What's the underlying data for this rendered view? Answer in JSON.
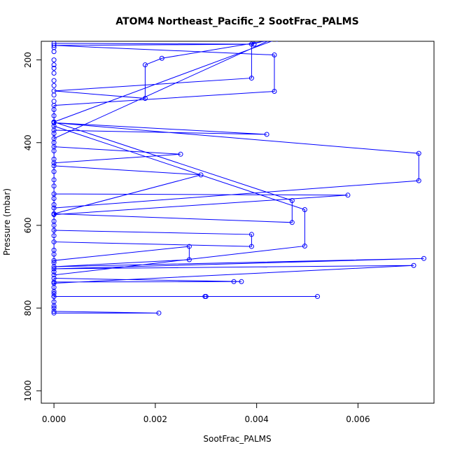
{
  "chart_data": {
    "type": "line",
    "title": "ATOM4 Northeast_Pacific_2 SootFrac_PALMS",
    "xlabel": "SootFrac_PALMS",
    "ylabel": "Pressure (mbar)",
    "xlim": [
      -0.00025,
      0.0075
    ],
    "ylim": [
      1030,
      155
    ],
    "y_reversed": true,
    "x_ticks": [
      0.0,
      0.002,
      0.004,
      0.006
    ],
    "x_tick_labels": [
      "0.000",
      "0.002",
      "0.004",
      "0.006"
    ],
    "y_ticks": [
      200,
      400,
      600,
      800,
      1000
    ],
    "y_tick_labels": [
      "200",
      "400",
      "600",
      "800",
      "1000"
    ],
    "grid": false,
    "series": [
      {
        "color": "#0000ff",
        "marker": "open-circle",
        "points": [
          [
            0.0,
            160
          ],
          [
            0.00395,
            162
          ],
          [
            0.0,
            165
          ],
          [
            0.00435,
            188
          ],
          [
            0.00435,
            276
          ],
          [
            0.0,
            310
          ],
          [
            0.0,
            350
          ],
          [
            0.0044,
            150
          ],
          [
            0.00213,
            196
          ],
          [
            0.0018,
            212
          ],
          [
            0.0018,
            293
          ],
          [
            0.0,
            275
          ],
          [
            0.0039,
            244
          ],
          [
            0.0039,
            162
          ],
          [
            0.0043,
            150
          ],
          [
            0.0,
            390
          ],
          [
            0.0,
            370
          ],
          [
            0.0042,
            380
          ],
          [
            0.0,
            352
          ],
          [
            0.0072,
            426
          ],
          [
            0.0072,
            492
          ],
          [
            0.0,
            558
          ],
          [
            0.0,
            410
          ],
          [
            0.0025,
            428
          ],
          [
            0.0,
            449
          ],
          [
            0.0,
            360
          ],
          [
            0.00495,
            562
          ],
          [
            0.00495,
            650
          ],
          [
            0.0,
            720
          ],
          [
            0.0,
            612
          ],
          [
            0.0039,
            622
          ],
          [
            0.0039,
            651
          ],
          [
            0.0,
            640
          ],
          [
            0.0,
            456
          ],
          [
            0.0029,
            478
          ],
          [
            0.0,
            572
          ],
          [
            0.0047,
            593
          ],
          [
            0.0047,
            540
          ],
          [
            0.0,
            350
          ],
          [
            0.0,
            524
          ],
          [
            0.0058,
            527
          ],
          [
            0.0,
            574
          ],
          [
            0.0,
            685
          ],
          [
            0.00267,
            651
          ],
          [
            0.00267,
            683
          ],
          [
            0.0,
            700
          ],
          [
            0.0073,
            680
          ],
          [
            0.0,
            705
          ],
          [
            0.0071,
            697
          ],
          [
            0.0,
            740
          ],
          [
            0.0,
            728
          ],
          [
            0.0037,
            736
          ],
          [
            0.00355,
            736
          ],
          [
            0.0,
            737
          ],
          [
            0.0,
            765
          ],
          [
            0.0,
            772
          ],
          [
            0.00298,
            772
          ],
          [
            0.003,
            772
          ],
          [
            0.0052,
            772
          ],
          [
            0.0,
            772
          ],
          [
            0.0,
            808
          ],
          [
            0.00207,
            812
          ],
          [
            0.0,
            812
          ]
        ],
        "markers_only": [
          [
            0.0,
            170
          ],
          [
            0.0,
            180
          ],
          [
            0.0,
            200
          ],
          [
            0.0,
            212
          ],
          [
            0.0,
            220
          ],
          [
            0.0,
            232
          ],
          [
            0.0,
            250
          ],
          [
            0.0,
            262
          ],
          [
            0.0,
            285
          ],
          [
            0.0,
            300
          ],
          [
            0.0,
            320
          ],
          [
            0.0,
            335
          ],
          [
            0.0,
            378
          ],
          [
            0.0,
            400
          ],
          [
            0.0,
            420
          ],
          [
            0.0,
            440
          ],
          [
            0.0,
            470
          ],
          [
            0.0,
            490
          ],
          [
            0.0,
            505
          ],
          [
            0.0,
            535
          ],
          [
            0.0,
            550
          ],
          [
            0.0,
            590
          ],
          [
            0.0,
            600
          ],
          [
            0.0,
            625
          ],
          [
            0.0,
            660
          ],
          [
            0.0,
            670
          ],
          [
            0.0,
            690
          ],
          [
            0.0,
            712
          ],
          [
            0.0,
            750
          ],
          [
            0.0,
            760
          ],
          [
            0.0,
            785
          ],
          [
            0.0,
            795
          ],
          [
            0.0,
            800
          ]
        ]
      }
    ]
  }
}
